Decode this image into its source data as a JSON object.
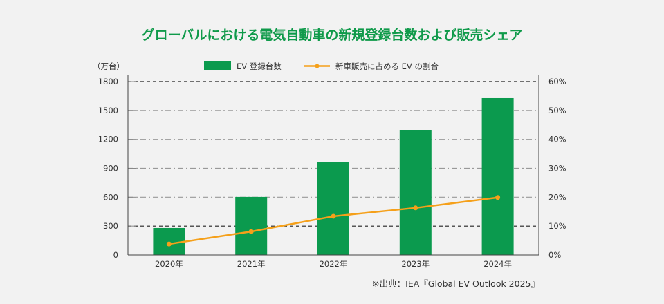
{
  "chart_data": {
    "type": "bar+line",
    "title": "グローバルにおける電気自動車の新規登録台数および販売シェア",
    "ylabel_left": "（万台）",
    "categories": [
      "2020年",
      "2021年",
      "2022年",
      "2023年",
      "2024年"
    ],
    "series": [
      {
        "name": "EV 登録台数",
        "type": "bar",
        "axis": "left",
        "values": [
          280,
          603,
          968,
          1298,
          1628
        ],
        "color": "#0b9a4e"
      },
      {
        "name": "新車販売に占める EV の割合",
        "type": "line",
        "axis": "right",
        "values": [
          3.8,
          8.1,
          13.4,
          16.3,
          19.9
        ],
        "unit": "%",
        "color": "#f5a01a"
      }
    ],
    "ylim_left": [
      0,
      1800
    ],
    "yticks_left": [
      "0",
      "300",
      "600",
      "900",
      "1200",
      "1500",
      "1800"
    ],
    "ylim_right": [
      0,
      60
    ],
    "yticks_right": [
      "0%",
      "10%",
      "20%",
      "30%",
      "40%",
      "50%",
      "60%"
    ],
    "grid": true,
    "legend": "top-center",
    "source": "※出典：IEA『Global EV Outlook 2025』"
  }
}
